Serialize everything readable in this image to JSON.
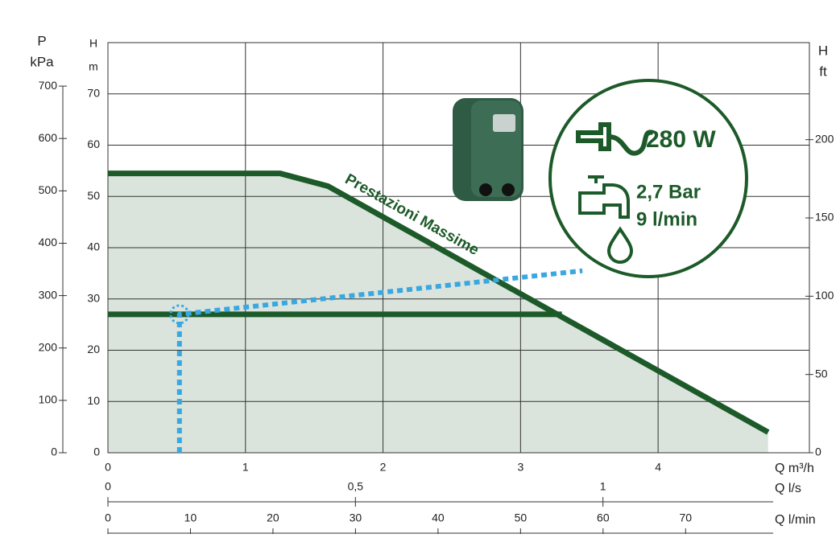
{
  "chart_data": {
    "type": "line",
    "y_label": "H",
    "y_unit": "m",
    "x_label": "Q m³/h",
    "xlim": [
      0,
      5.1
    ],
    "xticks": [
      0,
      1,
      2,
      3,
      4
    ],
    "ylim": [
      0,
      80
    ],
    "yticks": [
      0,
      10,
      20,
      30,
      40,
      50,
      60,
      70
    ],
    "grid": true,
    "series": [
      {
        "name": "Prestazioni Massime",
        "color": "#1d5a29",
        "area_color": "#dbe4dc",
        "x": [
          0,
          1.25,
          1.6,
          4.8
        ],
        "values": [
          54.5,
          54.5,
          52,
          4
        ]
      },
      {
        "color": "#1d5a29",
        "x": [
          0,
          3.3
        ],
        "values": [
          27,
          27
        ]
      },
      {
        "color": "#3aa8e0",
        "dashed": true,
        "x": [
          0.52,
          0.52,
          3.45
        ],
        "values": [
          0,
          27,
          35.5
        ]
      }
    ],
    "p_axis": {
      "label": "P",
      "unit": "kPa",
      "lim": [
        0,
        783
      ],
      "ticks": [
        0,
        100,
        200,
        300,
        400,
        500,
        600,
        700
      ]
    },
    "ft_axis": {
      "label": "H",
      "unit": "ft",
      "lim": [
        0,
        262
      ],
      "ticks": [
        0,
        50,
        100,
        150,
        200
      ]
    },
    "ls_axis": {
      "label": "Q l/s",
      "lim": [
        0,
        1.417
      ],
      "ticks": [
        0,
        {
          "value": 0.5,
          "label": "0,5"
        },
        1
      ]
    },
    "lmin_axis": {
      "label": "Q l/min",
      "lim": [
        0,
        85
      ],
      "ticks": [
        0,
        10,
        20,
        30,
        40,
        50,
        60,
        70
      ]
    },
    "badge": {
      "power": "280 W",
      "pressure": "2,7 Bar",
      "flow": "9 l/min"
    }
  }
}
